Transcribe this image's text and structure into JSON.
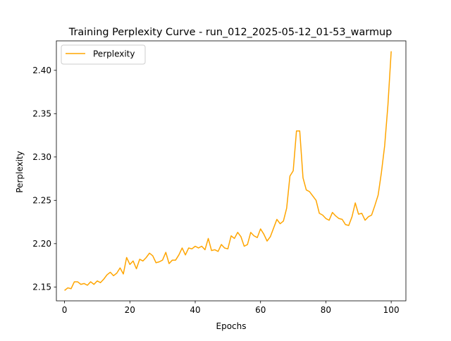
{
  "chart_data": {
    "type": "line",
    "title": "Training Perplexity Curve - run_012_2025-05-12_01-53_warmup",
    "xlabel": "Epochs",
    "ylabel": "Perplexity",
    "xlim": [
      -2.5,
      104.5
    ],
    "ylim": [
      2.134,
      2.434
    ],
    "xticks": [
      0,
      20,
      40,
      60,
      80,
      100
    ],
    "yticks": [
      2.15,
      2.2,
      2.25,
      2.3,
      2.35,
      2.4
    ],
    "ytick_labels": [
      "2.15",
      "2.20",
      "2.25",
      "2.30",
      "2.35",
      "2.40"
    ],
    "grid": false,
    "legend": {
      "placement": "upper-left"
    },
    "series": [
      {
        "name": "Perplexity",
        "color": "#ffa500",
        "x": [
          0,
          1,
          2,
          3,
          4,
          5,
          6,
          7,
          8,
          9,
          10,
          11,
          12,
          13,
          14,
          15,
          16,
          17,
          18,
          19,
          20,
          21,
          22,
          23,
          24,
          25,
          26,
          27,
          28,
          29,
          30,
          31,
          32,
          33,
          34,
          35,
          36,
          37,
          38,
          39,
          40,
          41,
          42,
          43,
          44,
          45,
          46,
          47,
          48,
          49,
          50,
          51,
          52,
          53,
          54,
          55,
          56,
          57,
          58,
          59,
          60,
          61,
          62,
          63,
          64,
          65,
          66,
          67,
          68,
          69,
          70,
          71,
          72,
          73,
          74,
          75,
          76,
          77,
          78,
          79,
          80,
          81,
          82,
          83,
          84,
          85,
          86,
          87,
          88,
          89,
          90,
          91,
          92,
          93,
          94,
          95,
          96,
          97,
          98,
          99,
          100
        ],
        "values": [
          2.146,
          2.149,
          2.148,
          2.156,
          2.156,
          2.153,
          2.154,
          2.152,
          2.156,
          2.153,
          2.157,
          2.155,
          2.159,
          2.164,
          2.167,
          2.163,
          2.166,
          2.172,
          2.165,
          2.184,
          2.176,
          2.18,
          2.171,
          2.182,
          2.18,
          2.184,
          2.189,
          2.186,
          2.178,
          2.179,
          2.181,
          2.19,
          2.177,
          2.181,
          2.181,
          2.187,
          2.195,
          2.187,
          2.195,
          2.194,
          2.197,
          2.195,
          2.197,
          2.193,
          2.206,
          2.192,
          2.193,
          2.191,
          2.199,
          2.195,
          2.194,
          2.209,
          2.206,
          2.213,
          2.208,
          2.197,
          2.199,
          2.213,
          2.209,
          2.207,
          2.217,
          2.211,
          2.203,
          2.208,
          2.218,
          2.228,
          2.223,
          2.226,
          2.241,
          2.278,
          2.284,
          2.33,
          2.33,
          2.276,
          2.262,
          2.26,
          2.255,
          2.25,
          2.235,
          2.233,
          2.229,
          2.227,
          2.236,
          2.232,
          2.229,
          2.228,
          2.222,
          2.221,
          2.231,
          2.247,
          2.234,
          2.235,
          2.227,
          2.231,
          2.233,
          2.244,
          2.256,
          2.282,
          2.313,
          2.36,
          2.422
        ]
      }
    ]
  }
}
